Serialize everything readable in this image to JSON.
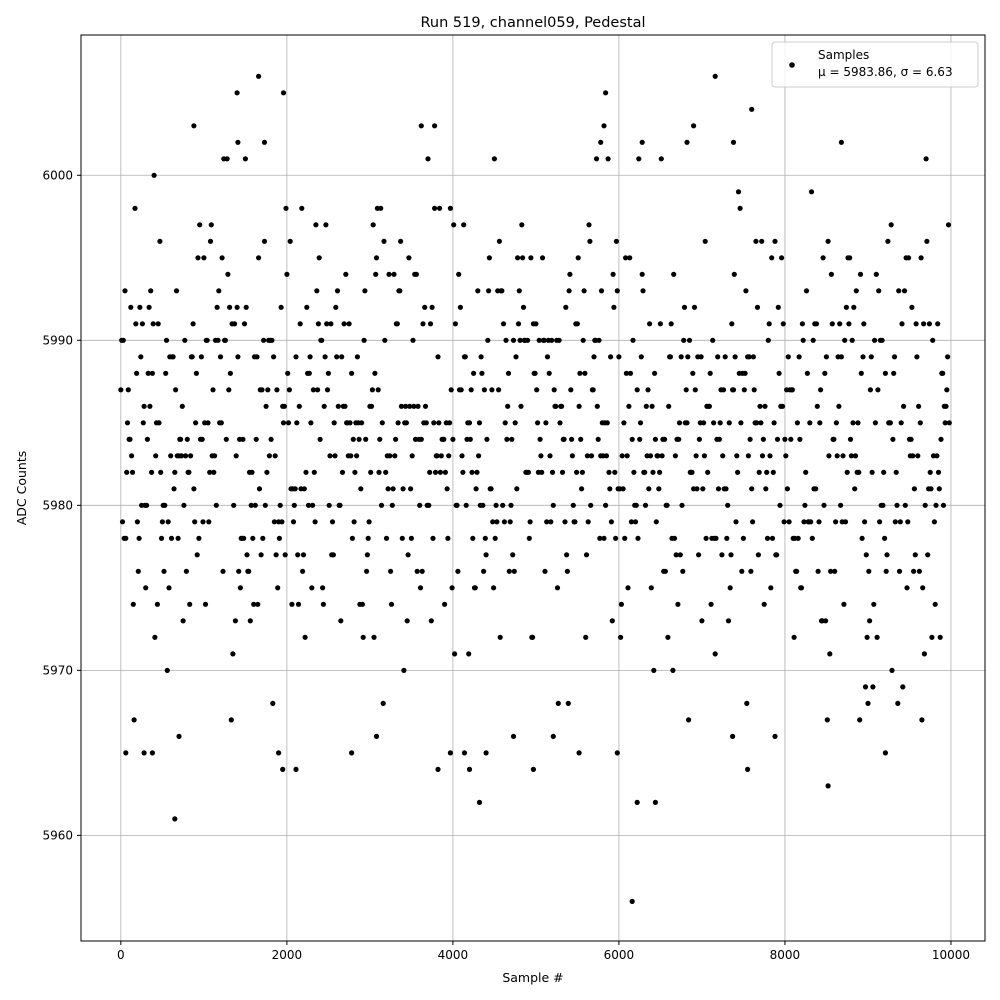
{
  "chart_data": {
    "type": "scatter",
    "title": "Run 519, channel059, Pedestal",
    "xlabel": "Sample #",
    "ylabel": "ADC Counts",
    "xlim": [
      -480,
      10410
    ],
    "ylim": [
      5953.6,
      6008.5
    ],
    "xticks": [
      0,
      2000,
      4000,
      6000,
      8000,
      10000
    ],
    "xtick_labels": [
      "0",
      "2000",
      "4000",
      "6000",
      "8000",
      "10000"
    ],
    "yticks": [
      5960,
      5970,
      5980,
      5990,
      6000
    ],
    "ytick_labels": [
      "5960",
      "5970",
      "5980",
      "5990",
      "6000"
    ],
    "grid": true,
    "legend_position": "top-right",
    "series": [
      {
        "name": "Samples",
        "stats_label": "μ = 5983.86, σ = 6.63",
        "mean": 5983.86,
        "sigma": 6.63,
        "color": "#000000",
        "y_values_are_integers": true,
        "notable_points": [
          {
            "x": 650,
            "y": 5961
          },
          {
            "x": 6160,
            "y": 5956
          },
          {
            "x": 8520,
            "y": 5963
          },
          {
            "x": 4320,
            "y": 5962
          },
          {
            "x": 6220,
            "y": 5962
          },
          {
            "x": 6440,
            "y": 5962
          },
          {
            "x": 1660,
            "y": 6006
          },
          {
            "x": 7160,
            "y": 6006
          },
          {
            "x": 1400,
            "y": 6005
          },
          {
            "x": 1960,
            "y": 6005
          },
          {
            "x": 5840,
            "y": 6005
          },
          {
            "x": 7600,
            "y": 6004
          },
          {
            "x": 880,
            "y": 6003
          },
          {
            "x": 3620,
            "y": 6003
          },
          {
            "x": 3780,
            "y": 6003
          },
          {
            "x": 5820,
            "y": 6003
          },
          {
            "x": 6900,
            "y": 6003
          },
          {
            "x": 1410,
            "y": 6002
          },
          {
            "x": 1730,
            "y": 6002
          },
          {
            "x": 5780,
            "y": 6002
          },
          {
            "x": 6280,
            "y": 6002
          },
          {
            "x": 6820,
            "y": 6002
          },
          {
            "x": 7380,
            "y": 6002
          },
          {
            "x": 8680,
            "y": 6002
          },
          {
            "x": 60,
            "y": 5965
          },
          {
            "x": 280,
            "y": 5965
          },
          {
            "x": 380,
            "y": 5965
          },
          {
            "x": 1900,
            "y": 5965
          },
          {
            "x": 2780,
            "y": 5965
          },
          {
            "x": 3970,
            "y": 5965
          },
          {
            "x": 4140,
            "y": 5965
          },
          {
            "x": 4400,
            "y": 5965
          },
          {
            "x": 5520,
            "y": 5965
          },
          {
            "x": 5980,
            "y": 5965
          },
          {
            "x": 9210,
            "y": 5965
          },
          {
            "x": 1950,
            "y": 5964
          },
          {
            "x": 2110,
            "y": 5964
          },
          {
            "x": 3820,
            "y": 5964
          },
          {
            "x": 4200,
            "y": 5964
          },
          {
            "x": 4970,
            "y": 5964
          },
          {
            "x": 7550,
            "y": 5964
          },
          {
            "x": 700,
            "y": 5966
          },
          {
            "x": 3080,
            "y": 5966
          },
          {
            "x": 4730,
            "y": 5966
          },
          {
            "x": 5210,
            "y": 5966
          },
          {
            "x": 7370,
            "y": 5966
          },
          {
            "x": 7880,
            "y": 5966
          }
        ]
      }
    ]
  }
}
